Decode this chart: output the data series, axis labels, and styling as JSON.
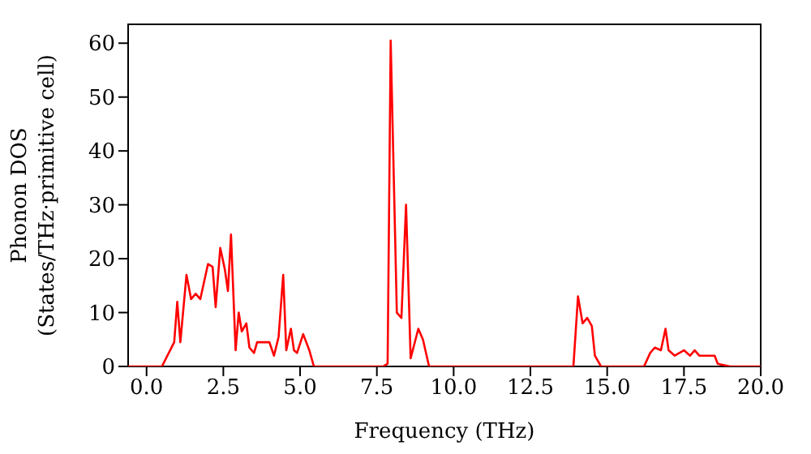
{
  "chart_data": {
    "type": "line",
    "xlabel": "Frequency (THz)",
    "ylabel": "Phonon DOS\n(States/THz·primitive cell)",
    "x": [
      -0.6,
      0,
      0.5,
      0.9,
      1.0,
      1.1,
      1.3,
      1.45,
      1.6,
      1.75,
      2.0,
      2.15,
      2.25,
      2.4,
      2.55,
      2.65,
      2.75,
      2.9,
      3.0,
      3.1,
      3.25,
      3.35,
      3.5,
      3.6,
      3.8,
      4.0,
      4.15,
      4.3,
      4.45,
      4.55,
      4.7,
      4.8,
      4.9,
      5.1,
      5.3,
      5.45,
      7.7,
      7.85,
      7.95,
      8.15,
      8.3,
      8.45,
      8.6,
      8.85,
      9.0,
      9.2,
      13.9,
      14.05,
      14.2,
      14.35,
      14.5,
      14.6,
      14.8,
      16.2,
      16.4,
      16.55,
      16.75,
      16.9,
      17.0,
      17.2,
      17.5,
      17.7,
      17.85,
      18.0,
      18.5,
      18.6,
      19.0,
      20.0
    ],
    "series": [
      {
        "color": "#ff0000",
        "values": [
          0,
          0,
          0,
          4.5,
          12,
          4.5,
          17,
          12.5,
          13.5,
          12.5,
          19,
          18.5,
          11,
          22,
          18,
          14,
          24.5,
          3,
          10,
          6.5,
          8,
          3.5,
          2.5,
          4.5,
          4.5,
          4.5,
          2,
          5.5,
          17,
          3,
          7,
          3,
          2.5,
          6,
          3,
          0,
          0,
          0.5,
          60.5,
          10,
          9,
          30,
          1.5,
          7,
          5,
          0,
          0,
          13,
          8,
          9,
          7.5,
          2,
          0,
          0,
          2.5,
          3.5,
          3,
          7,
          3,
          2,
          3,
          2,
          3,
          2,
          2,
          0.5,
          0,
          0
        ]
      }
    ],
    "xlim": [
      -0.6,
      20
    ],
    "ylim": [
      0,
      63.5
    ],
    "xticks": [
      {
        "value": 0,
        "label": "0.0"
      },
      {
        "value": 2.5,
        "label": "2.5"
      },
      {
        "value": 5,
        "label": "5.0"
      },
      {
        "value": 7.5,
        "label": "7.5"
      },
      {
        "value": 10,
        "label": "10.0"
      },
      {
        "value": 12.5,
        "label": "12.5"
      },
      {
        "value": 15,
        "label": "15.0"
      },
      {
        "value": 17.5,
        "label": "17.5"
      },
      {
        "value": 20,
        "label": "20.0"
      }
    ],
    "yticks": [
      0,
      10,
      20,
      30,
      40,
      50,
      60
    ],
    "grid": false,
    "legend": false,
    "marker": "none",
    "line_style": "solid"
  }
}
